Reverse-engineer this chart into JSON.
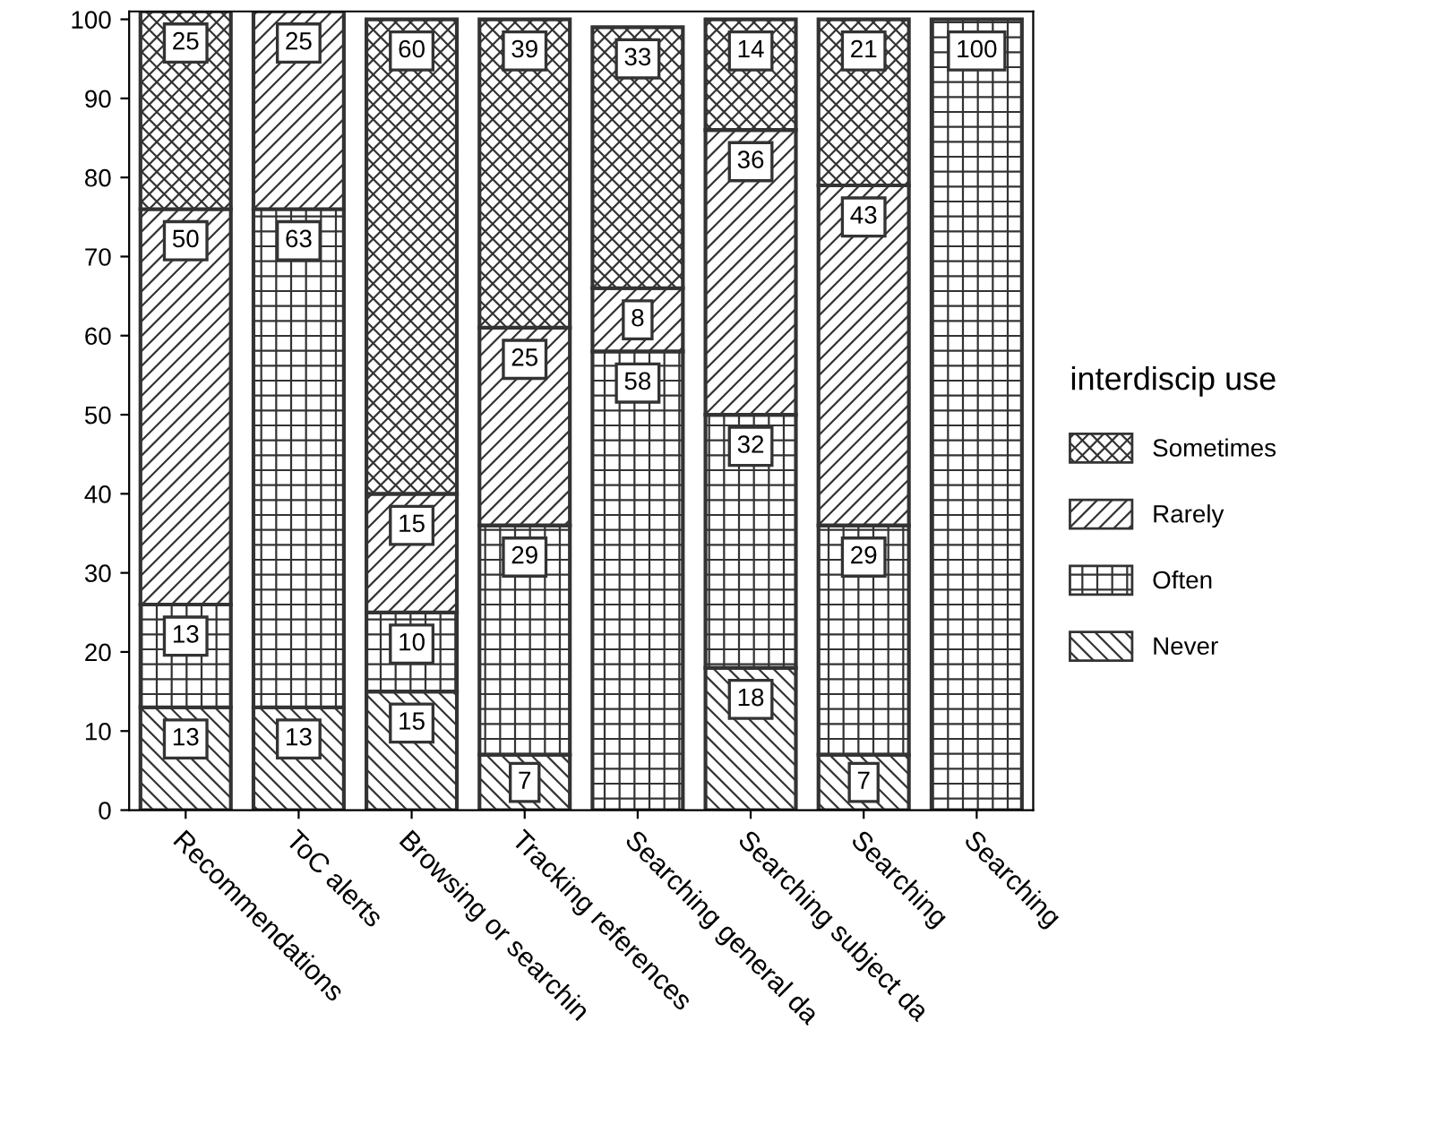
{
  "chart_data": {
    "type": "bar",
    "stacked": true,
    "legend_title": "interdiscip use",
    "legend": "right",
    "categories": [
      "Recommendations",
      "ToC alerts",
      "Browsing or searchin",
      "Tracking references",
      "Searching general da",
      "Searching subject da",
      "Searching",
      "Searching"
    ],
    "series": [
      {
        "name": "Never",
        "color": "#333333",
        "values": [
          13,
          13,
          15,
          7,
          null,
          18,
          7,
          null
        ],
        "value_labels": [
          "13",
          "13",
          "15",
          "7",
          null,
          "18",
          "7",
          null
        ]
      },
      {
        "name": "Often",
        "color": "#333333",
        "values": [
          13,
          63,
          10,
          29,
          58,
          32,
          29,
          100
        ],
        "value_labels": [
          "13",
          "63",
          "10",
          "29",
          "58",
          "32",
          "29",
          "100"
        ]
      },
      {
        "name": "Rarely",
        "color": "#333333",
        "values": [
          50,
          25,
          15,
          25,
          8,
          36,
          43,
          null
        ],
        "value_labels": [
          "50",
          "25",
          "15",
          "25",
          "8",
          "36",
          "43",
          null
        ]
      },
      {
        "name": "Sometimes",
        "color": "#333333",
        "values": [
          25,
          null,
          60,
          39,
          33,
          14,
          21,
          null
        ],
        "value_labels": [
          "25",
          null,
          "60",
          "39",
          "33",
          "14",
          "21",
          null
        ]
      }
    ],
    "ylim": [
      0,
      101
    ],
    "yticks": [
      0,
      10,
      20,
      30,
      40,
      50,
      60,
      70,
      80,
      90,
      100
    ],
    "grid": false
  }
}
